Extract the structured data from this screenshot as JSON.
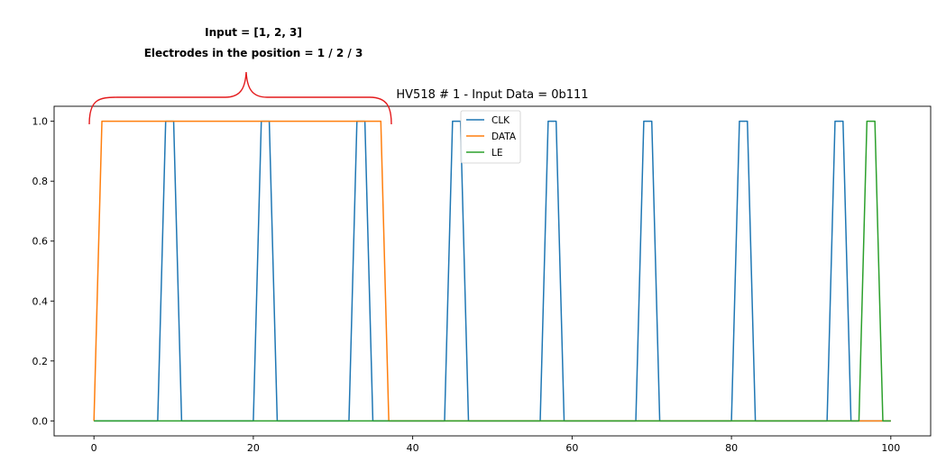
{
  "annotation": {
    "line1": "Input = [1, 2, 3]",
    "line2": "Electrodes in the position = 1 / 2 / 3",
    "brace_color": "#e41a1c"
  },
  "chart_data": {
    "type": "line",
    "title": "HV518 # 1 - Input Data = 0b111",
    "xlabel": "",
    "ylabel": "",
    "xlim": [
      -5,
      105
    ],
    "ylim": [
      -0.05,
      1.05
    ],
    "xticks": [
      "0",
      "20",
      "40",
      "60",
      "80",
      "100"
    ],
    "yticks": [
      "0.0",
      "0.2",
      "0.4",
      "0.6",
      "0.8",
      "1.0"
    ],
    "legend_position": "top-center",
    "grid": false,
    "series": [
      {
        "name": "CLK",
        "color": "#1f77b4",
        "x": [
          0,
          8,
          9,
          10,
          11,
          20,
          21,
          22,
          23,
          32,
          33,
          34,
          35,
          44,
          45,
          46,
          47,
          56,
          57,
          58,
          59,
          68,
          69,
          70,
          71,
          80,
          81,
          82,
          83,
          92,
          93,
          94,
          95,
          100
        ],
        "y": [
          0,
          0,
          1,
          1,
          0,
          0,
          1,
          1,
          0,
          0,
          1,
          1,
          0,
          0,
          1,
          1,
          0,
          0,
          1,
          1,
          0,
          0,
          1,
          1,
          0,
          0,
          1,
          1,
          0,
          0,
          1,
          1,
          0,
          0
        ]
      },
      {
        "name": "DATA",
        "color": "#ff7f0e",
        "x": [
          0,
          1,
          36,
          37,
          100
        ],
        "y": [
          0,
          1,
          1,
          0,
          0
        ]
      },
      {
        "name": "LE",
        "color": "#2ca02c",
        "x": [
          0,
          96,
          97,
          98,
          99,
          100
        ],
        "y": [
          0,
          0,
          1,
          1,
          0,
          0
        ]
      }
    ]
  }
}
